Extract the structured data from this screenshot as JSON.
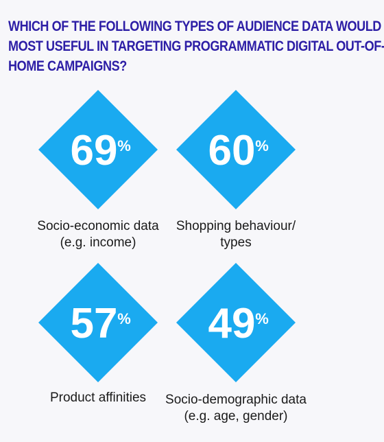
{
  "title_lines": [
    "WHICH OF THE FOLLOWING TYPES OF AUDIENCE DATA WOULD BE",
    "MOST USEFUL IN TARGETING PROGRAMMATIC DIGITAL OUT-OF-",
    "HOME CAMPAIGNS?"
  ],
  "colors": {
    "title": "#2d1ea6",
    "diamond": "#1aaaf0",
    "value_text": "#ffffff",
    "label_text": "#1a1a1a",
    "background": "#f7f7fa"
  },
  "chart_data": {
    "type": "infographic",
    "unit": "%",
    "items": [
      {
        "value": 69,
        "label_lines": [
          "Socio-economic data",
          "(e.g. income)"
        ]
      },
      {
        "value": 60,
        "label_lines": [
          "Shopping behaviour/",
          "types"
        ]
      },
      {
        "value": 57,
        "label_lines": [
          "Product affinities"
        ]
      },
      {
        "value": 49,
        "label_lines": [
          "Socio-demographic data",
          "(e.g. age, gender)"
        ]
      }
    ]
  }
}
